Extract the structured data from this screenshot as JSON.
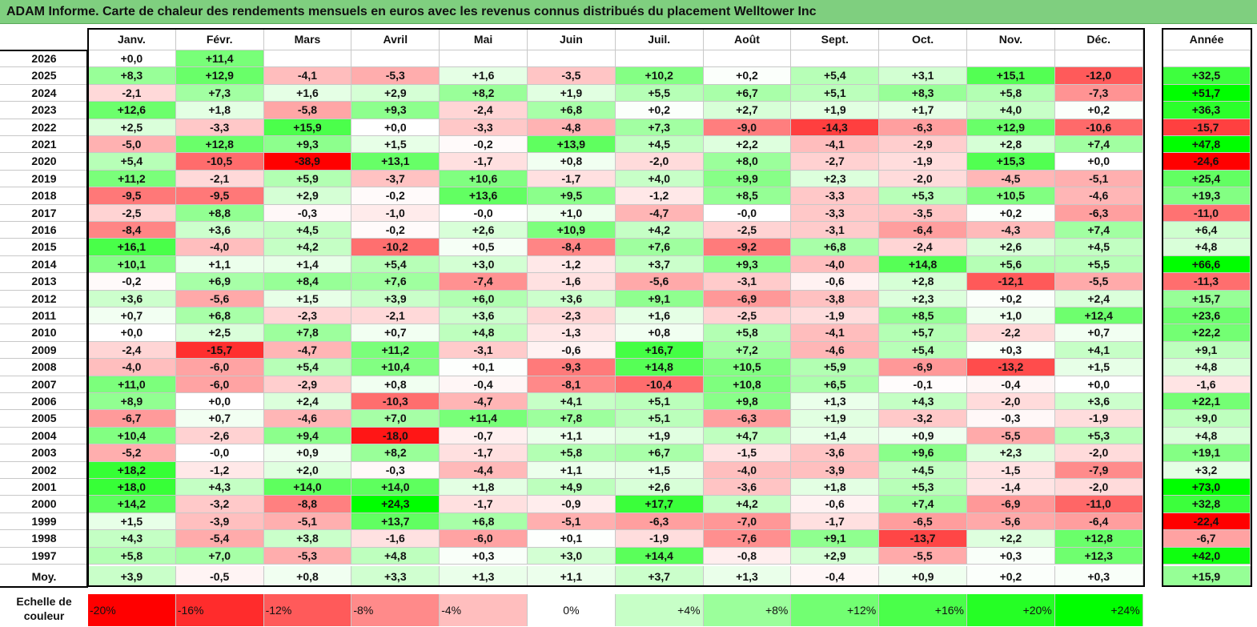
{
  "title": "ADAM Informe. Carte de chaleur des rendements mensuels en euros avec les revenus connus distribués du placement Welltower Inc",
  "year_header": "Année",
  "avg_label": "Moy.",
  "scale_label": "Echelle de couleur",
  "colors": {
    "positive": "#00ff00",
    "negative": "#ff0000",
    "neutral": "#ffffff",
    "title_bg": "#7fcf7f"
  },
  "chart_data": {
    "type": "heatmap",
    "title": "ADAM Informe. Carte de chaleur des rendements mensuels en euros avec les revenus connus distribués du placement Welltower Inc",
    "months": [
      "Janv.",
      "Févr.",
      "Mars",
      "Avril",
      "Mai",
      "Juin",
      "Juil.",
      "Août",
      "Sept.",
      "Oct.",
      "Nov.",
      "Déc."
    ],
    "rows": [
      {
        "year": "2026",
        "values": [
          "+0,0",
          "+11,4",
          "",
          "",
          "",
          "",
          "",
          "",
          "",
          "",
          "",
          ""
        ],
        "annual": ""
      },
      {
        "year": "2025",
        "values": [
          "+8,3",
          "+12,9",
          "-4,1",
          "-5,3",
          "+1,6",
          "-3,5",
          "+10,2",
          "+0,2",
          "+5,4",
          "+3,1",
          "+15,1",
          "-12,0"
        ],
        "annual": "+32,5"
      },
      {
        "year": "2024",
        "values": [
          "-2,1",
          "+7,3",
          "+1,6",
          "+2,9",
          "+8,2",
          "+1,9",
          "+5,5",
          "+6,7",
          "+5,1",
          "+8,3",
          "+5,8",
          "-7,3"
        ],
        "annual": "+51,7"
      },
      {
        "year": "2023",
        "values": [
          "+12,6",
          "+1,8",
          "-5,8",
          "+9,3",
          "-2,4",
          "+6,8",
          "+0,2",
          "+2,7",
          "+1,9",
          "+1,7",
          "+4,0",
          "+0,2"
        ],
        "annual": "+36,3"
      },
      {
        "year": "2022",
        "values": [
          "+2,5",
          "-3,3",
          "+15,9",
          "+0,0",
          "-3,3",
          "-4,8",
          "+7,3",
          "-9,0",
          "-14,3",
          "-6,3",
          "+12,9",
          "-10,6"
        ],
        "annual": "-15,7"
      },
      {
        "year": "2021",
        "values": [
          "-5,0",
          "+12,8",
          "+9,3",
          "+1,5",
          "-0,2",
          "+13,9",
          "+4,5",
          "+2,2",
          "-4,1",
          "-2,9",
          "+2,8",
          "+7,4"
        ],
        "annual": "+47,8"
      },
      {
        "year": "2020",
        "values": [
          "+5,4",
          "-10,5",
          "-38,9",
          "+13,1",
          "-1,7",
          "+0,8",
          "-2,0",
          "+8,0",
          "-2,7",
          "-1,9",
          "+15,3",
          "+0,0"
        ],
        "annual": "-24,6"
      },
      {
        "year": "2019",
        "values": [
          "+11,2",
          "-2,1",
          "+5,9",
          "-3,7",
          "+10,6",
          "-1,7",
          "+4,0",
          "+9,9",
          "+2,3",
          "-2,0",
          "-4,5",
          "-5,1"
        ],
        "annual": "+25,4"
      },
      {
        "year": "2018",
        "values": [
          "-9,5",
          "-9,5",
          "+2,9",
          "-0,2",
          "+13,6",
          "+9,5",
          "-1,2",
          "+8,5",
          "-3,3",
          "+5,3",
          "+10,5",
          "-4,6"
        ],
        "annual": "+19,3"
      },
      {
        "year": "2017",
        "values": [
          "-2,5",
          "+8,8",
          "-0,3",
          "-1,0",
          "-0,0",
          "+1,0",
          "-4,7",
          "-0,0",
          "-3,3",
          "-3,5",
          "+0,2",
          "-6,3"
        ],
        "annual": "-11,0"
      },
      {
        "year": "2016",
        "values": [
          "-8,4",
          "+3,6",
          "+4,5",
          "-0,2",
          "+2,6",
          "+10,9",
          "+4,2",
          "-2,5",
          "-3,1",
          "-6,4",
          "-4,3",
          "+7,4"
        ],
        "annual": "+6,4"
      },
      {
        "year": "2015",
        "values": [
          "+16,1",
          "-4,0",
          "+4,2",
          "-10,2",
          "+0,5",
          "-8,4",
          "+7,6",
          "-9,2",
          "+6,8",
          "-2,4",
          "+2,6",
          "+4,5"
        ],
        "annual": "+4,8"
      },
      {
        "year": "2014",
        "values": [
          "+10,1",
          "+1,1",
          "+1,4",
          "+5,4",
          "+3,0",
          "-1,2",
          "+3,7",
          "+9,3",
          "-4,0",
          "+14,8",
          "+5,6",
          "+5,5"
        ],
        "annual": "+66,6"
      },
      {
        "year": "2013",
        "values": [
          "-0,2",
          "+6,9",
          "+8,4",
          "+7,6",
          "-7,4",
          "-1,6",
          "-5,6",
          "-3,1",
          "-0,6",
          "+2,8",
          "-12,1",
          "-5,5"
        ],
        "annual": "-11,3"
      },
      {
        "year": "2012",
        "values": [
          "+3,6",
          "-5,6",
          "+1,5",
          "+3,9",
          "+6,0",
          "+3,6",
          "+9,1",
          "-6,9",
          "-3,8",
          "+2,3",
          "+0,2",
          "+2,4"
        ],
        "annual": "+15,7"
      },
      {
        "year": "2011",
        "values": [
          "+0,7",
          "+6,8",
          "-2,3",
          "-2,1",
          "+3,6",
          "-2,3",
          "+1,6",
          "-2,5",
          "-1,9",
          "+8,5",
          "+1,0",
          "+12,4"
        ],
        "annual": "+23,6"
      },
      {
        "year": "2010",
        "values": [
          "+0,0",
          "+2,5",
          "+7,8",
          "+0,7",
          "+4,8",
          "-1,3",
          "+0,8",
          "+5,8",
          "-4,1",
          "+5,7",
          "-2,2",
          "+0,7"
        ],
        "annual": "+22,2"
      },
      {
        "year": "2009",
        "values": [
          "-2,4",
          "-15,7",
          "-4,7",
          "+11,2",
          "-3,1",
          "-0,6",
          "+16,7",
          "+7,2",
          "-4,6",
          "+5,4",
          "+0,3",
          "+4,1"
        ],
        "annual": "+9,1"
      },
      {
        "year": "2008",
        "values": [
          "-4,0",
          "-6,0",
          "+5,4",
          "+10,4",
          "+0,1",
          "-9,3",
          "+14,8",
          "+10,5",
          "+5,9",
          "-6,9",
          "-13,2",
          "+1,5"
        ],
        "annual": "+4,8"
      },
      {
        "year": "2007",
        "values": [
          "+11,0",
          "-6,0",
          "-2,9",
          "+0,8",
          "-0,4",
          "-8,1",
          "-10,4",
          "+10,8",
          "+6,5",
          "-0,1",
          "-0,4",
          "+0,0"
        ],
        "annual": "-1,6"
      },
      {
        "year": "2006",
        "values": [
          "+8,9",
          "+0,0",
          "+2,4",
          "-10,3",
          "-4,7",
          "+4,1",
          "+5,1",
          "+9,8",
          "+1,3",
          "+4,3",
          "-2,0",
          "+3,6"
        ],
        "annual": "+22,1"
      },
      {
        "year": "2005",
        "values": [
          "-6,7",
          "+0,7",
          "-4,6",
          "+7,0",
          "+11,4",
          "+7,8",
          "+5,1",
          "-6,3",
          "+1,9",
          "-3,2",
          "-0,3",
          "-1,9"
        ],
        "annual": "+9,0"
      },
      {
        "year": "2004",
        "values": [
          "+10,4",
          "-2,6",
          "+9,4",
          "-18,0",
          "-0,7",
          "+1,1",
          "+1,9",
          "+4,7",
          "+1,4",
          "+0,9",
          "-5,5",
          "+5,3"
        ],
        "annual": "+4,8"
      },
      {
        "year": "2003",
        "values": [
          "-5,2",
          "-0,0",
          "+0,9",
          "+8,2",
          "-1,7",
          "+5,8",
          "+6,7",
          "-1,5",
          "-3,6",
          "+9,6",
          "+2,3",
          "-2,0"
        ],
        "annual": "+19,1"
      },
      {
        "year": "2002",
        "values": [
          "+18,2",
          "-1,2",
          "+2,0",
          "-0,3",
          "-4,4",
          "+1,1",
          "+1,5",
          "-4,0",
          "-3,9",
          "+4,5",
          "-1,5",
          "-7,9"
        ],
        "annual": "+3,2"
      },
      {
        "year": "2001",
        "values": [
          "+18,0",
          "+4,3",
          "+14,0",
          "+14,0",
          "+1,8",
          "+4,9",
          "+2,6",
          "-3,6",
          "+1,8",
          "+5,3",
          "-1,4",
          "-2,0"
        ],
        "annual": "+73,0"
      },
      {
        "year": "2000",
        "values": [
          "+14,2",
          "-3,2",
          "-8,8",
          "+24,3",
          "-1,7",
          "-0,9",
          "+17,7",
          "+4,2",
          "-0,6",
          "+7,4",
          "-6,9",
          "-11,0"
        ],
        "annual": "+32,8"
      },
      {
        "year": "1999",
        "values": [
          "+1,5",
          "-3,9",
          "-5,1",
          "+13,7",
          "+6,8",
          "-5,1",
          "-6,3",
          "-7,0",
          "-1,7",
          "-6,5",
          "-5,6",
          "-6,4"
        ],
        "annual": "-22,4"
      },
      {
        "year": "1998",
        "values": [
          "+4,3",
          "-5,4",
          "+3,8",
          "-1,6",
          "-6,0",
          "+0,1",
          "-1,9",
          "-7,6",
          "+9,1",
          "-13,7",
          "+2,2",
          "+12,8"
        ],
        "annual": "-6,7"
      },
      {
        "year": "1997",
        "values": [
          "+5,8",
          "+7,0",
          "-5,3",
          "+4,8",
          "+0,3",
          "+3,0",
          "+14,4",
          "-0,8",
          "+2,9",
          "-5,5",
          "+0,3",
          "+12,3"
        ],
        "annual": "+42,0"
      }
    ],
    "average": {
      "values": [
        "+3,9",
        "-0,5",
        "+0,8",
        "+3,3",
        "+1,3",
        "+1,1",
        "+3,7",
        "+1,3",
        "-0,4",
        "+0,9",
        "+0,2",
        "+0,3"
      ],
      "annual": "+15,9"
    },
    "color_scale": [
      "-20%",
      "-16%",
      "-12%",
      "-8%",
      "-4%",
      "0%",
      "+4%",
      "+8%",
      "+12%",
      "+16%",
      "+20%",
      "+24%"
    ],
    "color_scale_values": [
      -20,
      -16,
      -12,
      -8,
      -4,
      0,
      4,
      8,
      12,
      16,
      20,
      24
    ]
  }
}
